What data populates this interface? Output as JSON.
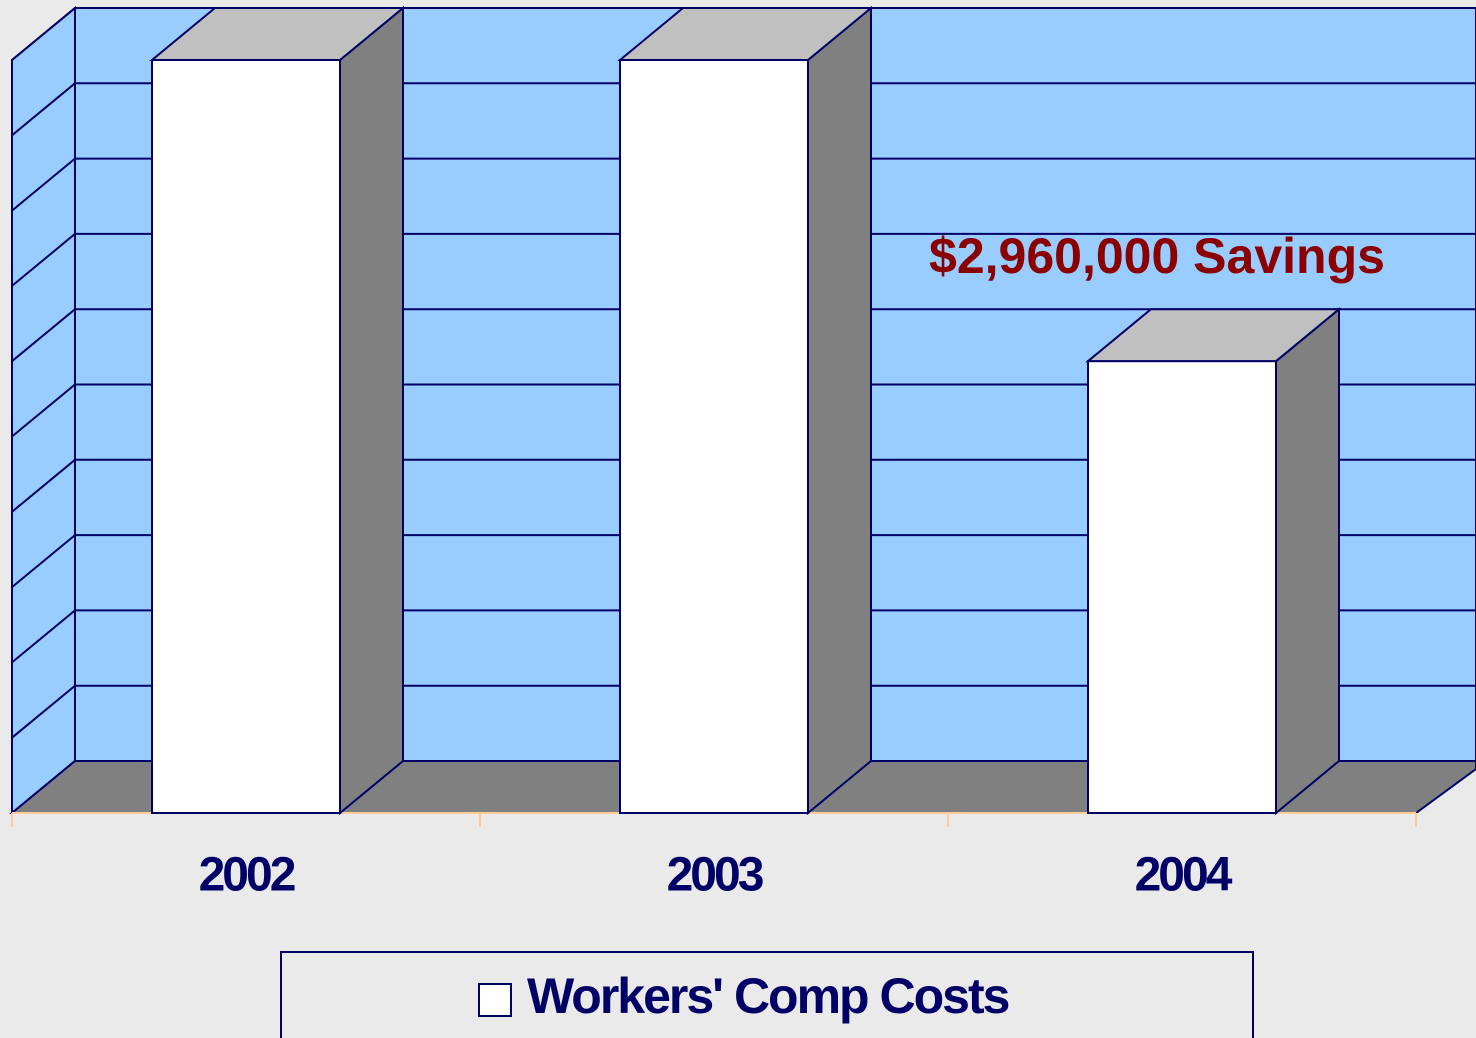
{
  "chart_data": {
    "type": "bar3d",
    "categories": [
      "2002",
      "2003",
      "2004"
    ],
    "series": [
      {
        "name": "Workers' Comp Costs",
        "color": "#ffffff",
        "values": [
          7400000,
          7400000,
          4440000
        ]
      }
    ],
    "annotation": "$2,960,000 Savings",
    "ylim": [
      0,
      7400000
    ],
    "yticks": [
      0,
      740000,
      1480000,
      2220000,
      2960000,
      3700000,
      4440000,
      5180000,
      5920000,
      6660000,
      7400000
    ],
    "grid": true,
    "legend": "bottom"
  }
}
